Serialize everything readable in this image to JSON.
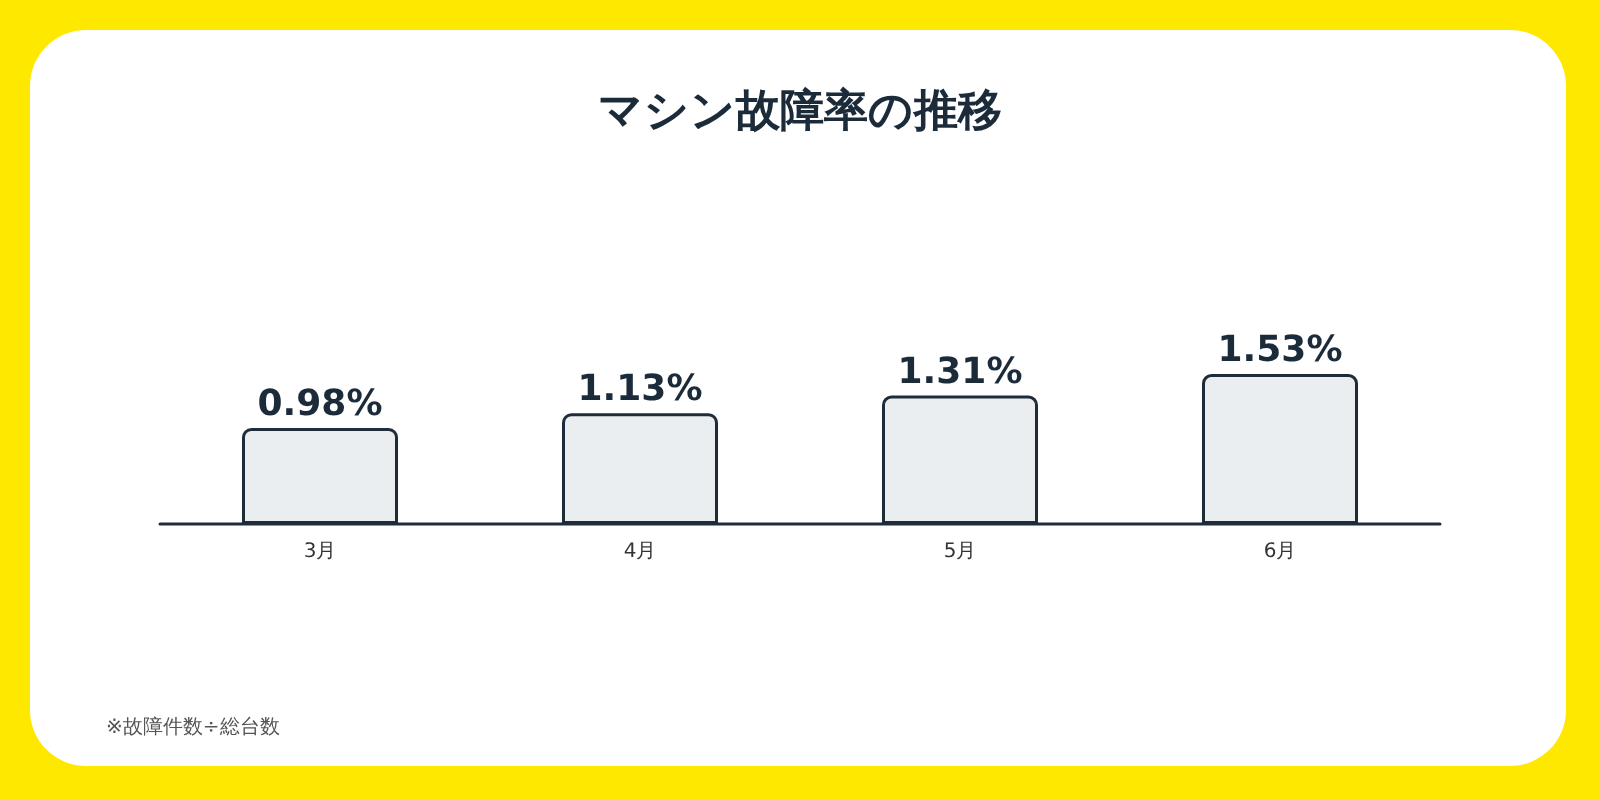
{
  "chart_data": {
    "type": "bar",
    "title": "マシン故障率の推移",
    "categories": [
      "3月",
      "4月",
      "5月",
      "6月"
    ],
    "values": [
      0.98,
      1.13,
      1.31,
      1.53
    ],
    "value_labels": [
      "0.98%",
      "1.13%",
      "1.31%",
      "1.53%"
    ],
    "color": "#ebeef1",
    "annotations": [
      "※故障件数÷総台数"
    ]
  }
}
